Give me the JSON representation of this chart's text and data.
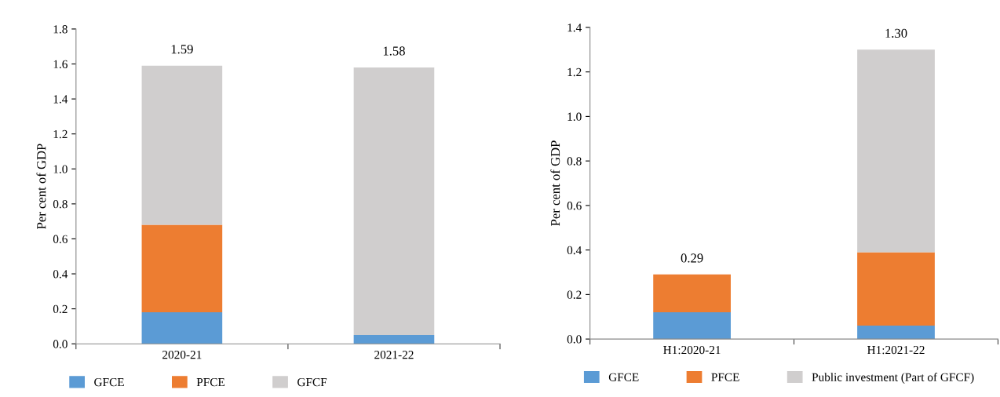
{
  "chart_data": [
    {
      "type": "bar",
      "stacked": true,
      "ylabel": "Per cent of GDP",
      "categories": [
        "2020-21",
        "2021-22"
      ],
      "series": [
        {
          "name": "GFCE",
          "color": "#5b9bd5",
          "values": [
            0.18,
            0.05
          ]
        },
        {
          "name": "PFCE",
          "color": "#ed7d31",
          "values": [
            0.5,
            0.0
          ]
        },
        {
          "name": "GFCF",
          "color": "#d0cece",
          "values": [
            0.91,
            1.53
          ]
        }
      ],
      "totals": [
        "1.59",
        "1.58"
      ],
      "ylim": [
        0,
        1.8
      ],
      "yticks": [
        {
          "value": 0,
          "label": "0.0"
        },
        {
          "value": 0.2,
          "label": "0.2"
        },
        {
          "value": 0.4,
          "label": "0.4"
        },
        {
          "value": 0.6,
          "label": "0.6"
        },
        {
          "value": 0.8,
          "label": "0.8"
        },
        {
          "value": 1.0,
          "label": "1.0"
        },
        {
          "value": 1.2,
          "label": "1.2"
        },
        {
          "value": 1.4,
          "label": "1.4"
        },
        {
          "value": 1.6,
          "label": "1.6"
        },
        {
          "value": 1.8,
          "label": "1.8"
        }
      ],
      "grid": false,
      "legend": "bottom"
    },
    {
      "type": "bar",
      "stacked": true,
      "ylabel": "Per cent of GDP",
      "categories": [
        "H1:2020-21",
        "H1:2021-22"
      ],
      "series": [
        {
          "name": "GFCE",
          "color": "#5b9bd5",
          "values": [
            0.12,
            0.06
          ]
        },
        {
          "name": "PFCE",
          "color": "#ed7d31",
          "values": [
            0.17,
            0.33
          ]
        },
        {
          "name": "Public investment (Part of GFCF)",
          "color": "#d0cece",
          "values": [
            0.0,
            0.91
          ]
        }
      ],
      "totals": [
        "0.29",
        "1.30"
      ],
      "ylim": [
        0,
        1.4
      ],
      "yticks": [
        {
          "value": 0,
          "label": "0.0"
        },
        {
          "value": 0.2,
          "label": "0.2"
        },
        {
          "value": 0.4,
          "label": "0.4"
        },
        {
          "value": 0.6,
          "label": "0.6"
        },
        {
          "value": 0.8,
          "label": "0.8"
        },
        {
          "value": 1.0,
          "label": "1.0"
        },
        {
          "value": 1.2,
          "label": "1.2"
        },
        {
          "value": 1.4,
          "label": "1.4"
        }
      ],
      "grid": false,
      "legend": "bottom"
    }
  ]
}
